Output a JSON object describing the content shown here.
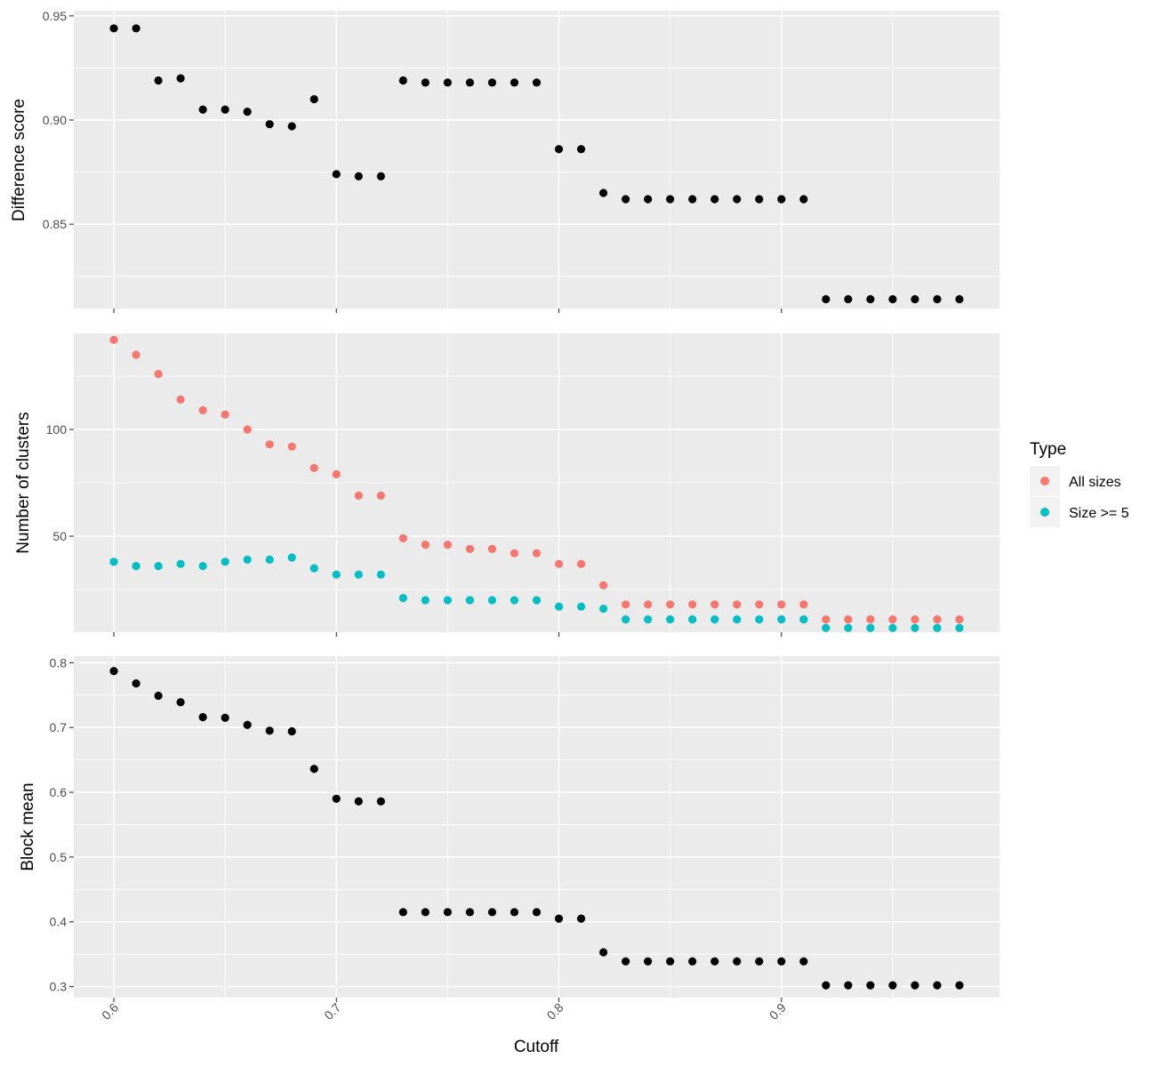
{
  "chart_data": [
    {
      "type": "scatter",
      "title": "",
      "xlabel": "",
      "ylabel": "Difference score",
      "xlim": [
        0.582,
        0.998
      ],
      "ylim": [
        0.8095,
        0.9525
      ],
      "yticks": [
        0.85,
        0.9,
        0.95
      ],
      "ytick_labels": [
        "0.85",
        "0.90",
        "0.95"
      ],
      "grid": true,
      "series": [
        {
          "color": "#000000",
          "x": [
            0.6,
            0.61,
            0.62,
            0.63,
            0.64,
            0.65,
            0.66,
            0.67,
            0.68,
            0.69,
            0.7,
            0.71,
            0.72,
            0.73,
            0.74,
            0.75,
            0.76,
            0.77,
            0.78,
            0.79,
            0.8,
            0.81,
            0.82,
            0.83,
            0.84,
            0.85,
            0.86,
            0.87,
            0.88,
            0.89,
            0.9,
            0.91,
            0.92,
            0.93,
            0.94,
            0.95,
            0.96,
            0.97,
            0.98
          ],
          "y": [
            0.944,
            0.944,
            0.919,
            0.92,
            0.905,
            0.905,
            0.904,
            0.898,
            0.897,
            0.91,
            0.874,
            0.873,
            0.873,
            0.919,
            0.918,
            0.918,
            0.918,
            0.918,
            0.918,
            0.918,
            0.886,
            0.886,
            0.865,
            0.862,
            0.862,
            0.862,
            0.862,
            0.862,
            0.862,
            0.862,
            0.862,
            0.862,
            0.814,
            0.814,
            0.814,
            0.814,
            0.814,
            0.814,
            0.814
          ]
        }
      ]
    },
    {
      "type": "scatter",
      "title": "",
      "xlabel": "",
      "ylabel": "Number of clusters",
      "xlim": [
        0.582,
        0.998
      ],
      "ylim": [
        5,
        145
      ],
      "yticks": [
        50,
        100
      ],
      "ytick_labels": [
        "50",
        "100"
      ],
      "grid": true,
      "legend": {
        "title": "Type",
        "position": "right",
        "entries": [
          "All sizes",
          "Size >= 5"
        ]
      },
      "series": [
        {
          "name": "All sizes",
          "color": "#F8766D",
          "x": [
            0.6,
            0.61,
            0.62,
            0.63,
            0.64,
            0.65,
            0.66,
            0.67,
            0.68,
            0.69,
            0.7,
            0.71,
            0.72,
            0.73,
            0.74,
            0.75,
            0.76,
            0.77,
            0.78,
            0.79,
            0.8,
            0.81,
            0.82,
            0.83,
            0.84,
            0.85,
            0.86,
            0.87,
            0.88,
            0.89,
            0.9,
            0.91,
            0.92,
            0.93,
            0.94,
            0.95,
            0.96,
            0.97,
            0.98
          ],
          "y": [
            142,
            135,
            126,
            114,
            109,
            107,
            100,
            93,
            92,
            82,
            79,
            69,
            69,
            49,
            46,
            46,
            44,
            44,
            42,
            42,
            37,
            37,
            27,
            18,
            18,
            18,
            18,
            18,
            18,
            18,
            18,
            18,
            11,
            11,
            11,
            11,
            11,
            11,
            11
          ]
        },
        {
          "name": "Size >= 5",
          "color": "#00BFC4",
          "x": [
            0.6,
            0.61,
            0.62,
            0.63,
            0.64,
            0.65,
            0.66,
            0.67,
            0.68,
            0.69,
            0.7,
            0.71,
            0.72,
            0.73,
            0.74,
            0.75,
            0.76,
            0.77,
            0.78,
            0.79,
            0.8,
            0.81,
            0.82,
            0.83,
            0.84,
            0.85,
            0.86,
            0.87,
            0.88,
            0.89,
            0.9,
            0.91,
            0.92,
            0.93,
            0.94,
            0.95,
            0.96,
            0.97,
            0.98
          ],
          "y": [
            38,
            36,
            36,
            37,
            36,
            38,
            39,
            39,
            40,
            35,
            32,
            32,
            32,
            21,
            20,
            20,
            20,
            20,
            20,
            20,
            17,
            17,
            16,
            11,
            11,
            11,
            11,
            11,
            11,
            11,
            11,
            11,
            7,
            7,
            7,
            7,
            7,
            7,
            7
          ]
        }
      ]
    },
    {
      "type": "scatter",
      "title": "",
      "xlabel": "Cutoff",
      "ylabel": "Block mean",
      "xlim": [
        0.582,
        0.998
      ],
      "ylim": [
        0.283,
        0.81
      ],
      "xticks": [
        0.6,
        0.7,
        0.8,
        0.9
      ],
      "xtick_labels": [
        "0.6",
        "0.7",
        "0.8",
        "0.9"
      ],
      "yticks": [
        0.3,
        0.4,
        0.5,
        0.6,
        0.7,
        0.8
      ],
      "ytick_labels": [
        "0.3",
        "0.4",
        "0.5",
        "0.6",
        "0.7",
        "0.8"
      ],
      "grid": true,
      "series": [
        {
          "color": "#000000",
          "x": [
            0.6,
            0.61,
            0.62,
            0.63,
            0.64,
            0.65,
            0.66,
            0.67,
            0.68,
            0.69,
            0.7,
            0.71,
            0.72,
            0.73,
            0.74,
            0.75,
            0.76,
            0.77,
            0.78,
            0.79,
            0.8,
            0.81,
            0.82,
            0.83,
            0.84,
            0.85,
            0.86,
            0.87,
            0.88,
            0.89,
            0.9,
            0.91,
            0.92,
            0.93,
            0.94,
            0.95,
            0.96,
            0.97,
            0.98
          ],
          "y": [
            0.787,
            0.768,
            0.749,
            0.739,
            0.716,
            0.715,
            0.704,
            0.695,
            0.694,
            0.636,
            0.59,
            0.586,
            0.586,
            0.415,
            0.415,
            0.415,
            0.415,
            0.415,
            0.415,
            0.415,
            0.405,
            0.405,
            0.353,
            0.339,
            0.339,
            0.339,
            0.339,
            0.339,
            0.339,
            0.339,
            0.339,
            0.339,
            0.302,
            0.302,
            0.302,
            0.302,
            0.302,
            0.302,
            0.302
          ]
        }
      ]
    }
  ]
}
